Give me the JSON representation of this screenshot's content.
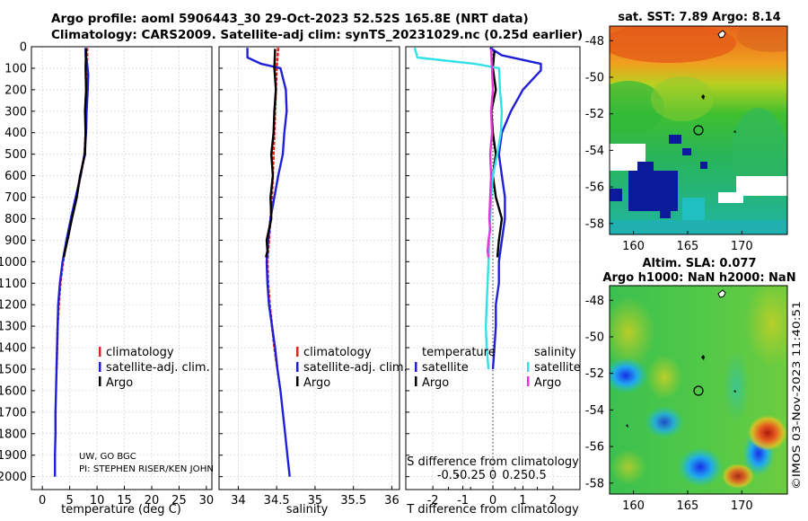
{
  "header": {
    "title_line1": "Argo profile: aoml 5906443_30 29-Oct-2023 52.52S 165.8E (NRT data)",
    "title_line2": "Climatology: CARS2009. Satellite-adj clim: synTS_20231029.nc (0.25d earlier)"
  },
  "colors": {
    "climatology": "#e0231c",
    "satellite": "#1f1fd6",
    "argo": "#000000",
    "satellite_salinity": "#33e0e8",
    "argo_salinity": "#e636d6"
  },
  "chart_data": [
    {
      "type": "line",
      "name": "temperature-profile",
      "xlabel": "temperature (deg C)",
      "ylabel": "",
      "xlim": [
        -2,
        31
      ],
      "ylim": [
        2060,
        0
      ],
      "xticks": [
        0,
        5,
        10,
        15,
        20,
        25,
        30
      ],
      "yticks": [
        0,
        100,
        200,
        300,
        400,
        500,
        600,
        700,
        800,
        900,
        1000,
        1100,
        1200,
        1300,
        1400,
        1500,
        1600,
        1700,
        1800,
        1900,
        2000
      ],
      "grid": true,
      "legend": [
        "climatology",
        "satellite-adj. clim.",
        "Argo"
      ],
      "credit": [
        "UW, GO BGC",
        "PI: STEPHEN RISER/KEN JOHN"
      ],
      "series": [
        {
          "name": "climatology",
          "color_key": "climatology",
          "points": [
            [
              8.2,
              5
            ],
            [
              8.2,
              50
            ],
            [
              8.1,
              100
            ],
            [
              8.0,
              200
            ],
            [
              8.0,
              300
            ],
            [
              7.9,
              400
            ],
            [
              7.7,
              500
            ],
            [
              7.0,
              600
            ],
            [
              6.2,
              700
            ],
            [
              5.3,
              800
            ],
            [
              4.5,
              900
            ],
            [
              3.8,
              1000
            ],
            [
              3.3,
              1100
            ],
            [
              3.0,
              1200
            ],
            [
              2.8,
              1300
            ],
            [
              2.7,
              1400
            ],
            [
              2.6,
              1500
            ]
          ]
        },
        {
          "name": "satellite-adj. clim.",
          "color_key": "satellite",
          "points": [
            [
              7.9,
              5
            ],
            [
              7.9,
              40
            ],
            [
              8.2,
              80
            ],
            [
              8.4,
              130
            ],
            [
              8.3,
              200
            ],
            [
              8.1,
              300
            ],
            [
              8.0,
              400
            ],
            [
              7.7,
              500
            ],
            [
              7.0,
              600
            ],
            [
              6.1,
              700
            ],
            [
              5.2,
              800
            ],
            [
              4.4,
              900
            ],
            [
              3.7,
              1000
            ],
            [
              3.2,
              1100
            ],
            [
              2.9,
              1200
            ],
            [
              2.8,
              1300
            ],
            [
              2.7,
              1400
            ],
            [
              2.6,
              1500
            ],
            [
              2.5,
              1600
            ],
            [
              2.4,
              1700
            ],
            [
              2.4,
              1800
            ],
            [
              2.3,
              1900
            ],
            [
              2.3,
              2000
            ]
          ]
        },
        {
          "name": "Argo",
          "color_key": "argo",
          "points": [
            [
              8.0,
              10
            ],
            [
              7.9,
              100
            ],
            [
              8.0,
              200
            ],
            [
              7.8,
              300
            ],
            [
              7.9,
              400
            ],
            [
              7.8,
              500
            ],
            [
              6.9,
              600
            ],
            [
              6.3,
              700
            ],
            [
              5.4,
              800
            ],
            [
              4.6,
              900
            ],
            [
              3.9,
              980
            ]
          ]
        }
      ]
    },
    {
      "type": "line",
      "name": "salinity-profile",
      "xlabel": "salinity",
      "ylabel": "",
      "xlim": [
        33.75,
        36.1
      ],
      "ylim": [
        2060,
        0
      ],
      "xticks": [
        34,
        34.5,
        35,
        35.5,
        36
      ],
      "grid": true,
      "legend": [
        "climatology",
        "satellite-adj. clim.",
        "Argo"
      ],
      "series": [
        {
          "name": "climatology",
          "color_key": "climatology",
          "points": [
            [
              34.52,
              5
            ],
            [
              34.5,
              100
            ],
            [
              34.49,
              200
            ],
            [
              34.48,
              300
            ],
            [
              34.47,
              400
            ],
            [
              34.46,
              500
            ],
            [
              34.45,
              600
            ],
            [
              34.44,
              700
            ],
            [
              34.42,
              800
            ],
            [
              34.4,
              900
            ],
            [
              34.38,
              1000
            ],
            [
              34.39,
              1100
            ],
            [
              34.41,
              1200
            ],
            [
              34.44,
              1300
            ],
            [
              34.47,
              1400
            ],
            [
              34.51,
              1500
            ]
          ]
        },
        {
          "name": "satellite-adj. clim.",
          "color_key": "satellite",
          "points": [
            [
              34.12,
              5
            ],
            [
              34.12,
              50
            ],
            [
              34.3,
              80
            ],
            [
              34.55,
              100
            ],
            [
              34.62,
              200
            ],
            [
              34.63,
              300
            ],
            [
              34.6,
              400
            ],
            [
              34.58,
              500
            ],
            [
              34.52,
              600
            ],
            [
              34.47,
              700
            ],
            [
              34.42,
              800
            ],
            [
              34.39,
              900
            ],
            [
              34.37,
              1000
            ],
            [
              34.38,
              1100
            ],
            [
              34.4,
              1200
            ],
            [
              34.44,
              1300
            ],
            [
              34.48,
              1400
            ],
            [
              34.51,
              1500
            ],
            [
              34.55,
              1600
            ],
            [
              34.58,
              1700
            ],
            [
              34.61,
              1800
            ],
            [
              34.64,
              1900
            ],
            [
              34.67,
              2000
            ]
          ]
        },
        {
          "name": "Argo",
          "color_key": "argo",
          "points": [
            [
              34.48,
              10
            ],
            [
              34.47,
              100
            ],
            [
              34.49,
              200
            ],
            [
              34.47,
              300
            ],
            [
              34.46,
              400
            ],
            [
              34.43,
              500
            ],
            [
              34.45,
              600
            ],
            [
              34.42,
              700
            ],
            [
              34.43,
              800
            ],
            [
              34.4,
              850
            ],
            [
              34.37,
              900
            ],
            [
              34.38,
              950
            ],
            [
              34.36,
              980
            ]
          ]
        }
      ]
    },
    {
      "type": "line",
      "name": "difference-from-climatology",
      "xlabel": "T difference from climatology",
      "xlabel_top": "S difference from climatology",
      "xlim": [
        -2.9,
        2.9
      ],
      "xlim_salinity": [
        -0.98,
        0.98
      ],
      "ylim": [
        2060,
        0
      ],
      "xticks": [
        -2,
        -1,
        0,
        1,
        2
      ],
      "xticks_salinity_labels": [
        "-0.5",
        "-0.25",
        "0",
        "0.25",
        "0.5"
      ],
      "xticks_salinity": [
        -0.5,
        -0.25,
        0,
        0.25,
        0.5
      ],
      "grid": true,
      "legend_temperature_title": "temperature",
      "legend_salinity_title": "salinity",
      "legend_temperature": [
        "satellite",
        "Argo"
      ],
      "legend_salinity": [
        "satellite",
        "Argo"
      ],
      "series": [
        {
          "name": "temperature satellite",
          "axis": "T",
          "color_key": "satellite",
          "points": [
            [
              -0.1,
              5
            ],
            [
              0.3,
              40
            ],
            [
              1.6,
              80
            ],
            [
              1.6,
              110
            ],
            [
              1.0,
              200
            ],
            [
              0.6,
              300
            ],
            [
              0.3,
              400
            ],
            [
              0.2,
              500
            ],
            [
              0.3,
              600
            ],
            [
              0.4,
              700
            ],
            [
              0.4,
              800
            ],
            [
              0.3,
              900
            ],
            [
              0.2,
              1000
            ],
            [
              0.2,
              1100
            ],
            [
              0.1,
              1200
            ],
            [
              0.1,
              1300
            ],
            [
              0.05,
              1400
            ],
            [
              0.0,
              1500
            ]
          ]
        },
        {
          "name": "temperature Argo",
          "axis": "T",
          "color_key": "argo",
          "points": [
            [
              0.05,
              20
            ],
            [
              0.0,
              100
            ],
            [
              0.1,
              200
            ],
            [
              -0.05,
              300
            ],
            [
              0.0,
              400
            ],
            [
              0.1,
              500
            ],
            [
              0.0,
              600
            ],
            [
              0.1,
              700
            ],
            [
              0.3,
              800
            ],
            [
              0.2,
              900
            ],
            [
              0.15,
              980
            ]
          ]
        },
        {
          "name": "salinity satellite",
          "axis": "S",
          "color_key": "satellite_salinity",
          "points": [
            [
              -0.88,
              5
            ],
            [
              -0.85,
              50
            ],
            [
              -0.2,
              80
            ],
            [
              0.07,
              100
            ],
            [
              0.08,
              200
            ],
            [
              0.1,
              300
            ],
            [
              0.09,
              400
            ],
            [
              0.05,
              500
            ],
            [
              0.0,
              600
            ],
            [
              -0.02,
              700
            ],
            [
              -0.03,
              800
            ],
            [
              -0.04,
              900
            ],
            [
              -0.05,
              1000
            ],
            [
              -0.06,
              1100
            ],
            [
              -0.07,
              1200
            ],
            [
              -0.08,
              1300
            ],
            [
              -0.07,
              1400
            ],
            [
              -0.05,
              1500
            ]
          ]
        },
        {
          "name": "salinity Argo",
          "axis": "S",
          "color_key": "argo_salinity",
          "points": [
            [
              -0.02,
              10
            ],
            [
              -0.01,
              100
            ],
            [
              0.0,
              200
            ],
            [
              -0.02,
              300
            ],
            [
              -0.01,
              400
            ],
            [
              -0.03,
              500
            ],
            [
              -0.02,
              600
            ],
            [
              -0.03,
              700
            ],
            [
              -0.04,
              800
            ],
            [
              -0.03,
              850
            ],
            [
              -0.05,
              900
            ],
            [
              -0.06,
              950
            ],
            [
              -0.05,
              980
            ]
          ]
        }
      ]
    },
    {
      "type": "heatmap",
      "name": "sst-map",
      "title": "sat. SST: 7.89 Argo: 8.14",
      "xlim": [
        157.8,
        174.2
      ],
      "ylim": [
        -58.6,
        -47.2
      ],
      "xticks": [
        160,
        165,
        170
      ],
      "yticks": [
        -48,
        -50,
        -52,
        -54,
        -56,
        -58
      ],
      "argo_position": [
        165.8,
        -52.52
      ]
    },
    {
      "type": "heatmap",
      "name": "sla-map",
      "title_line1": "Altim. SLA: 0.077",
      "title_line2": "Argo h1000: NaN h2000: NaN",
      "xlim": [
        157.8,
        174.2
      ],
      "ylim": [
        -58.6,
        -47.2
      ],
      "xticks": [
        160,
        165,
        170
      ],
      "yticks": [
        -48,
        -50,
        -52,
        -54,
        -56,
        -58
      ],
      "argo_position": [
        165.8,
        -52.52
      ],
      "watermark": "©IMOS 03-Nov-2023 11:40:51"
    }
  ]
}
